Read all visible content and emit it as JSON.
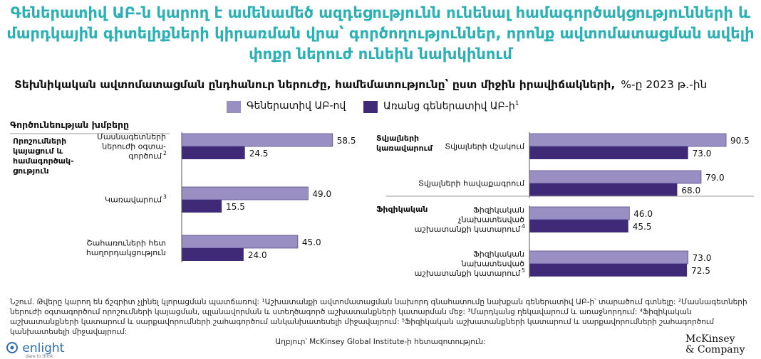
{
  "header": {
    "title_lines": [
      "Գեներատիվ ԱԲ-ն կարող է ամենամեծ ազդեցությունն ունենալ համագործակցությունների և",
      "մարդկային գիտելիքների կիրառման վրա՝ գործողություններ, որոնք ավտոմատացման ավելի",
      "փոքր ներուժ ունեին նախկինում"
    ],
    "subtitle": "Տեխնիկական ավտոմատացման ընդհանուր ներուժը, համեմատությունը՝ ըստ միջին իրավիճակների,",
    "unit": "%-ը 2023 թ.-ին",
    "group_header": "Գործունեության խմբերը"
  },
  "colors": {
    "light": "#9a8fc2",
    "dark": "#3f2a78",
    "title": "#2bb0b5"
  },
  "chart_data": {
    "type": "bar",
    "orientation": "horizontal",
    "title": "Տեխնիկական ավտոմատացման ընդհանուր ներուժը, համեմատությունը՝ ըստ միջին իրավիճակների",
    "unit": "%-ը 2023 թ.-ին",
    "legend": [
      {
        "name": "Գեներատիվ ԱԲ-ով",
        "sup": "",
        "color": "#9a8fc2"
      },
      {
        "name": "Առանց գեներատիվ ԱԲ-ի",
        "sup": "1",
        "color": "#3f2a78"
      }
    ],
    "xlim": [
      0,
      100
    ],
    "panels": [
      {
        "group_label": [
          "Որոշումների",
          "կայացում և",
          "համագործակ-",
          "ցություն"
        ],
        "categories": [
          {
            "label": [
              "Մասնագետների",
              "ներուժի օգտա-",
              "գործում"
            ],
            "sup": "2",
            "with_genai": 58.5,
            "without_genai": 24.5
          },
          {
            "label": [
              "Կառավարում"
            ],
            "sup": "3",
            "with_genai": 49.0,
            "without_genai": 15.5
          },
          {
            "label": [
              "Շահառուների հետ",
              "հաղորդակցություն"
            ],
            "sup": "",
            "with_genai": 45.0,
            "without_genai": 24.0
          }
        ]
      },
      {
        "group_label": [
          "Տվյալների",
          "կառավարում"
        ],
        "categories": [
          {
            "label": [
              "Տվյալների մշակում"
            ],
            "sup": "",
            "with_genai": 90.5,
            "without_genai": 73.0
          },
          {
            "label": [
              "Տվյալների հավաքագրում"
            ],
            "sup": "",
            "with_genai": 79.0,
            "without_genai": 68.0
          }
        ]
      },
      {
        "group_label": [
          "Ֆիզիկական"
        ],
        "categories": [
          {
            "label": [
              "Ֆիզիկական",
              "չնախատեսված",
              "աշխատանքի կատարում"
            ],
            "sup": "4",
            "with_genai": 46.0,
            "without_genai": 45.5
          },
          {
            "label": [
              "Ֆիզիկական",
              "նախատեսված",
              "աշխատանքի կատարում"
            ],
            "sup": "5",
            "with_genai": 73.0,
            "without_genai": 72.5
          }
        ]
      }
    ]
  },
  "footnote": {
    "text": "Նշում․ Թվերը կարող են ճշգրիտ չլինել կլորացման պատճառով: ¹Աշխատանքի ավտոմատացման նախորդ գնահատումը նախքան գեներատիվ ԱԲ-ի՝ տարածում գտնելը: ²Մասնագետների ներուժի օգտագործում որոշումների կայացման, պլանավորման և ստեղծագործ աշխատանքների կատարման մեջ: ³Մարդկանց ղեկավարում և առաջնորդում: ⁴Ֆիզիկական աշխատանքների կատարում և սարքավորումների շահագործում անկանխատեսելի միջավայրում: ⁵Ֆիզիկական աշխատանքների կատարում և սարքավորումների շահագործում կանխատեսելի միջավայրում:",
    "source": "Աղբյուր՝ McKinsey Global Institute-ի հետազոտություն:"
  },
  "logos": {
    "enlight": "enlight",
    "enlight_tagline": "dare to think",
    "mckinsey_lines": [
      "McKinsey",
      "& Company"
    ]
  }
}
